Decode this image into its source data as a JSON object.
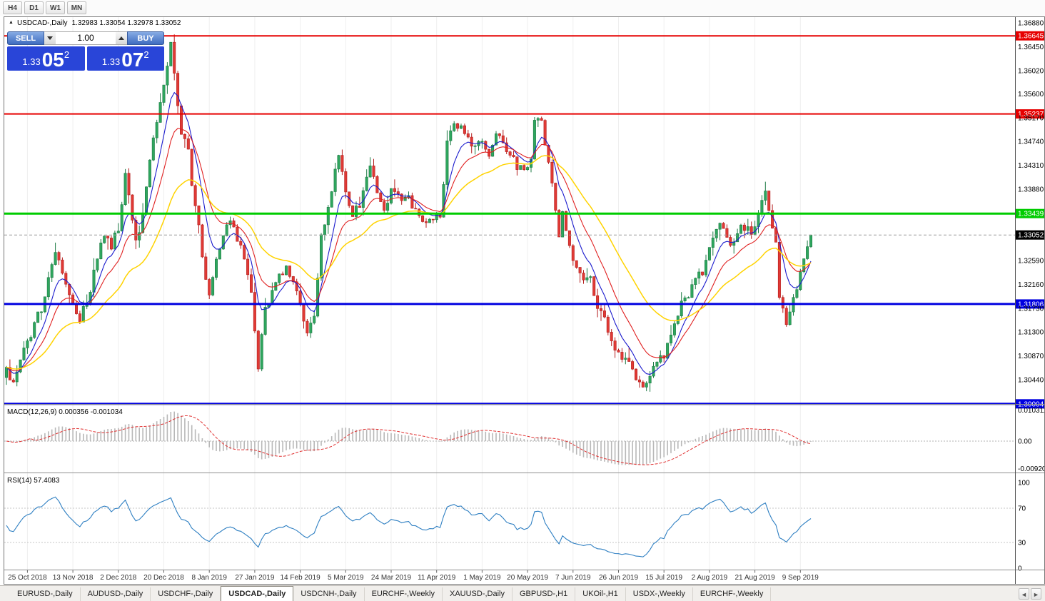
{
  "toolbar": {
    "timeframes": [
      "H4",
      "D1",
      "W1",
      "MN"
    ]
  },
  "header": {
    "collapse_icon": "▲",
    "title": "USDCAD-,Daily",
    "ohlc": "1.32983 1.33054 1.32978 1.33052"
  },
  "one_click": {
    "sell_label": "SELL",
    "buy_label": "BUY",
    "volume": "1.00",
    "sell_price": {
      "prefix": "1.33",
      "big": "05",
      "sup": "2"
    },
    "buy_price": {
      "prefix": "1.33",
      "big": "07",
      "sup": "2"
    }
  },
  "price_axis": {
    "ticks": [
      {
        "label": "1.36880",
        "price": 1.3688
      },
      {
        "label": "1.36450",
        "price": 1.3645
      },
      {
        "label": "1.36020",
        "price": 1.3602
      },
      {
        "label": "1.35600",
        "price": 1.356
      },
      {
        "label": "1.35170",
        "price": 1.3517
      },
      {
        "label": "1.34740",
        "price": 1.3474
      },
      {
        "label": "1.34310",
        "price": 1.3431
      },
      {
        "label": "1.33880",
        "price": 1.3388
      },
      {
        "label": "1.32590",
        "price": 1.3259
      },
      {
        "label": "1.32160",
        "price": 1.3216
      },
      {
        "label": "1.31730",
        "price": 1.3173
      },
      {
        "label": "1.31300",
        "price": 1.313
      },
      {
        "label": "1.30870",
        "price": 1.3087
      },
      {
        "label": "1.30440",
        "price": 1.3044
      }
    ],
    "levels": [
      {
        "label": "1.36645",
        "price": 1.36645,
        "color": "#e60000",
        "width": 2
      },
      {
        "label": "1.35237",
        "price": 1.35237,
        "color": "#e60000",
        "width": 2
      },
      {
        "label": "1.33439",
        "price": 1.33439,
        "color": "#00cc00",
        "width": 3
      },
      {
        "label": "1.31806",
        "price": 1.31806,
        "color": "#0000e0",
        "width": 3
      },
      {
        "label": "1.30004",
        "price": 1.30004,
        "color": "#0000e0",
        "width": 3
      }
    ],
    "current": {
      "label": "1.33052",
      "price": 1.33052,
      "bg": "#000000",
      "fg": "#ffffff"
    }
  },
  "indicators": {
    "macd": {
      "header": "MACD(12,26,9) 0.000356 -0.001034",
      "axis_labels": [
        {
          "label": "0.010311",
          "value": 0.010311
        },
        {
          "label": "0.00",
          "value": 0
        },
        {
          "label": "-0.009203",
          "value": -0.009203
        }
      ]
    },
    "rsi": {
      "header": "RSI(14) 57.4083",
      "axis_labels": [
        {
          "label": "100",
          "value": 100
        },
        {
          "label": "70",
          "value": 70
        },
        {
          "label": "30",
          "value": 30
        },
        {
          "label": "0",
          "value": 0
        }
      ],
      "levels": [
        70,
        30
      ]
    }
  },
  "date_axis": [
    "25 Oct 2018",
    "13 Nov 2018",
    "2 Dec 2018",
    "20 Dec 2018",
    "8 Jan 2019",
    "27 Jan 2019",
    "14 Feb 2019",
    "5 Mar 2019",
    "24 Mar 2019",
    "11 Apr 2019",
    "1 May 2019",
    "20 May 2019",
    "7 Jun 2019",
    "26 Jun 2019",
    "15 Jul 2019",
    "2 Aug 2019",
    "21 Aug 2019",
    "9 Sep 2019"
  ],
  "tabs": {
    "items": [
      {
        "label": "EURUSD-,Daily",
        "active": false
      },
      {
        "label": "AUDUSD-,Daily",
        "active": false
      },
      {
        "label": "USDCHF-,Daily",
        "active": false
      },
      {
        "label": "USDCAD-,Daily",
        "active": true
      },
      {
        "label": "USDCNH-,Daily",
        "active": false
      },
      {
        "label": "EURCHF-,Weekly",
        "active": false
      },
      {
        "label": "XAUUSD-,Daily",
        "active": false
      },
      {
        "label": "GBPUSD-,H1",
        "active": false
      },
      {
        "label": "UKOil-,H1",
        "active": false
      },
      {
        "label": "USDX-,Weekly",
        "active": false
      },
      {
        "label": "EURCHF-,Weekly",
        "active": false
      }
    ],
    "scroll_left": "◄",
    "scroll_right": "►"
  },
  "chart_data": {
    "type": "candlestick",
    "symbol": "USDCAD",
    "timeframe": "Daily",
    "bars": 231,
    "price_range": [
      1.2995,
      1.37
    ],
    "colors": {
      "up_fill": "#2fa65e",
      "up_stroke": "#1b7a43",
      "down_fill": "#e03a35",
      "down_stroke": "#b31c1c",
      "ma_fast": "#1b1bcd",
      "ma_mid": "#e02020",
      "ma_slow": "#ffd300",
      "macd_hist": "#b8b8b8",
      "macd_signal": "#e03030",
      "rsi": "#2e7fc2"
    },
    "close_anchors": [
      [
        0,
        1.306
      ],
      [
        2,
        1.3038
      ],
      [
        4,
        1.308
      ],
      [
        7,
        1.3125
      ],
      [
        10,
        1.3175
      ],
      [
        12,
        1.323
      ],
      [
        14,
        1.3268
      ],
      [
        16,
        1.3242
      ],
      [
        18,
        1.3195
      ],
      [
        21,
        1.3152
      ],
      [
        23,
        1.3185
      ],
      [
        26,
        1.3262
      ],
      [
        28,
        1.3305
      ],
      [
        30,
        1.3288
      ],
      [
        32,
        1.332
      ],
      [
        34,
        1.3415
      ],
      [
        35,
        1.337
      ],
      [
        37,
        1.329
      ],
      [
        39,
        1.3345
      ],
      [
        41,
        1.3445
      ],
      [
        43,
        1.351
      ],
      [
        45,
        1.3575
      ],
      [
        47,
        1.3645
      ],
      [
        48,
        1.36
      ],
      [
        50,
        1.349
      ],
      [
        52,
        1.346
      ],
      [
        53,
        1.34
      ],
      [
        55,
        1.332
      ],
      [
        57,
        1.3228
      ],
      [
        58,
        1.3195
      ],
      [
        60,
        1.3262
      ],
      [
        62,
        1.33
      ],
      [
        64,
        1.333
      ],
      [
        66,
        1.3298
      ],
      [
        68,
        1.327
      ],
      [
        70,
        1.3205
      ],
      [
        71,
        1.3135
      ],
      [
        72,
        1.3072
      ],
      [
        74,
        1.3168
      ],
      [
        76,
        1.3205
      ],
      [
        78,
        1.3228
      ],
      [
        80,
        1.3252
      ],
      [
        82,
        1.3218
      ],
      [
        84,
        1.318
      ],
      [
        86,
        1.3132
      ],
      [
        88,
        1.3158
      ],
      [
        90,
        1.3305
      ],
      [
        92,
        1.3355
      ],
      [
        94,
        1.3418
      ],
      [
        95,
        1.3452
      ],
      [
        97,
        1.3378
      ],
      [
        99,
        1.334
      ],
      [
        101,
        1.3362
      ],
      [
        103,
        1.3415
      ],
      [
        104,
        1.3438
      ],
      [
        106,
        1.3382
      ],
      [
        108,
        1.3352
      ],
      [
        110,
        1.3388
      ],
      [
        112,
        1.3372
      ],
      [
        114,
        1.338
      ],
      [
        116,
        1.3355
      ],
      [
        118,
        1.334
      ],
      [
        120,
        1.3332
      ],
      [
        122,
        1.3328
      ],
      [
        124,
        1.3342
      ],
      [
        126,
        1.3468
      ],
      [
        128,
        1.3502
      ],
      [
        130,
        1.3505
      ],
      [
        132,
        1.3478
      ],
      [
        134,
        1.3458
      ],
      [
        136,
        1.3476
      ],
      [
        138,
        1.3452
      ],
      [
        140,
        1.3482
      ],
      [
        142,
        1.3472
      ],
      [
        144,
        1.3452
      ],
      [
        146,
        1.3428
      ],
      [
        148,
        1.3422
      ],
      [
        150,
        1.3445
      ],
      [
        151,
        1.3518
      ],
      [
        153,
        1.3505
      ],
      [
        155,
        1.3428
      ],
      [
        157,
        1.3355
      ],
      [
        158,
        1.3308
      ],
      [
        159,
        1.3342
      ],
      [
        161,
        1.3282
      ],
      [
        163,
        1.3252
      ],
      [
        165,
        1.3228
      ],
      [
        167,
        1.3222
      ],
      [
        169,
        1.318
      ],
      [
        171,
        1.3152
      ],
      [
        173,
        1.3118
      ],
      [
        175,
        1.3092
      ],
      [
        177,
        1.3082
      ],
      [
        179,
        1.3055
      ],
      [
        181,
        1.3032
      ],
      [
        183,
        1.3042
      ],
      [
        185,
        1.306
      ],
      [
        187,
        1.308
      ],
      [
        189,
        1.3102
      ],
      [
        191,
        1.3148
      ],
      [
        193,
        1.3182
      ],
      [
        195,
        1.3195
      ],
      [
        197,
        1.3222
      ],
      [
        199,
        1.3238
      ],
      [
        201,
        1.3282
      ],
      [
        203,
        1.3322
      ],
      [
        205,
        1.3318
      ],
      [
        207,
        1.3292
      ],
      [
        209,
        1.3308
      ],
      [
        211,
        1.3322
      ],
      [
        213,
        1.3312
      ],
      [
        215,
        1.3338
      ],
      [
        217,
        1.3388
      ],
      [
        218,
        1.3342
      ],
      [
        219,
        1.3318
      ],
      [
        220,
        1.3288
      ],
      [
        221,
        1.3195
      ],
      [
        223,
        1.3148
      ],
      [
        225,
        1.3188
      ],
      [
        227,
        1.3232
      ],
      [
        229,
        1.3282
      ],
      [
        230,
        1.3305
      ]
    ]
  }
}
